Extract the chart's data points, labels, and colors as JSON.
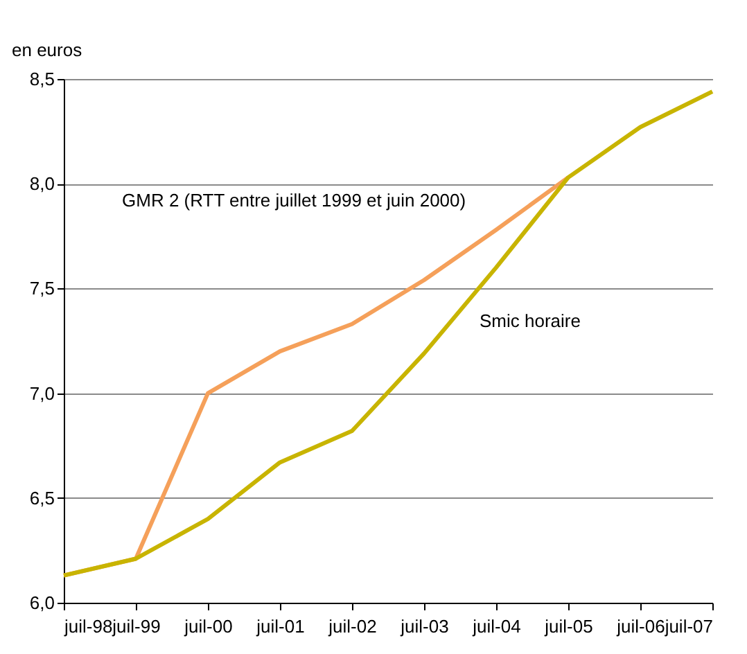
{
  "chart_data": {
    "type": "line",
    "ylabel": "en euros",
    "categories": [
      "juil-98",
      "juil-99",
      "juil-00",
      "juil-01",
      "juil-02",
      "juil-03",
      "juil-04",
      "juil-05",
      "juil-06",
      "juil-07"
    ],
    "series": [
      {
        "name": "GMR 2 (RTT entre juillet 1999 et juin 2000)",
        "color": "#f5a05a",
        "values": [
          6.13,
          6.21,
          7.0,
          7.2,
          7.33,
          7.54,
          7.78,
          8.03,
          null,
          null
        ]
      },
      {
        "name": "Smic horaire",
        "color": "#c8b400",
        "values": [
          6.13,
          6.21,
          6.4,
          6.67,
          6.82,
          7.19,
          7.6,
          8.03,
          8.27,
          8.44
        ]
      }
    ],
    "ylim": [
      6,
      8.5
    ],
    "yticks": [
      {
        "value": 6,
        "label": "6,0"
      },
      {
        "value": 6.5,
        "label": "6,5"
      },
      {
        "value": 7,
        "label": "7,0"
      },
      {
        "value": 7.5,
        "label": "7,5"
      },
      {
        "value": 8,
        "label": "8,0"
      },
      {
        "value": 8.5,
        "label": "8,5"
      }
    ],
    "grid": "y",
    "legend": false,
    "marker": "none",
    "line_style": "solid"
  }
}
